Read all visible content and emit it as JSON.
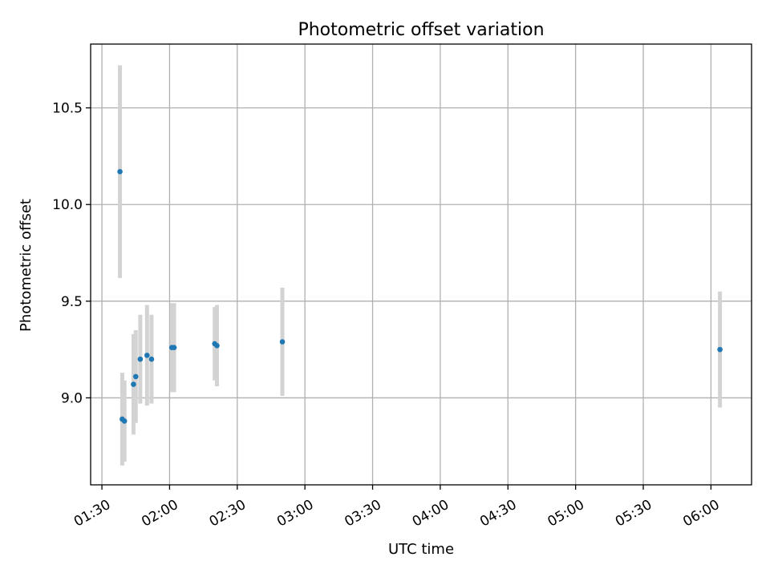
{
  "chart_data": {
    "type": "scatter",
    "title": "Photometric offset variation",
    "xlabel": "UTC time",
    "ylabel": "Photometric offset",
    "x_tick_labels": [
      "01:30",
      "02:00",
      "02:30",
      "03:00",
      "03:30",
      "04:00",
      "04:30",
      "05:00",
      "05:30",
      "06:00"
    ],
    "y_tick_labels": [
      "9.0",
      "9.5",
      "10.0",
      "10.5"
    ],
    "y_ticks": [
      9.0,
      9.5,
      10.0,
      10.5
    ],
    "xlim": [
      "01:25",
      "06:18"
    ],
    "ylim": [
      8.55,
      10.83
    ],
    "grid": true,
    "error_bar_color": "#d3d3d3",
    "marker_color": "#1f77b4",
    "points": [
      {
        "x": "01:38",
        "y": 10.17,
        "yerr": 0.55
      },
      {
        "x": "01:39",
        "y": 8.89,
        "yerr": 0.24
      },
      {
        "x": "01:40",
        "y": 8.88,
        "yerr": 0.21
      },
      {
        "x": "01:44",
        "y": 9.07,
        "yerr": 0.26
      },
      {
        "x": "01:45",
        "y": 9.11,
        "yerr": 0.24
      },
      {
        "x": "01:47",
        "y": 9.2,
        "yerr": 0.23
      },
      {
        "x": "01:50",
        "y": 9.22,
        "yerr": 0.26
      },
      {
        "x": "01:52",
        "y": 9.2,
        "yerr": 0.23
      },
      {
        "x": "02:01",
        "y": 9.26,
        "yerr": 0.23
      },
      {
        "x": "02:02",
        "y": 9.26,
        "yerr": 0.23
      },
      {
        "x": "02:20",
        "y": 9.28,
        "yerr": 0.19
      },
      {
        "x": "02:21",
        "y": 9.27,
        "yerr": 0.21
      },
      {
        "x": "02:50",
        "y": 9.29,
        "yerr": 0.28
      },
      {
        "x": "06:04",
        "y": 9.25,
        "yerr": 0.3
      }
    ]
  }
}
